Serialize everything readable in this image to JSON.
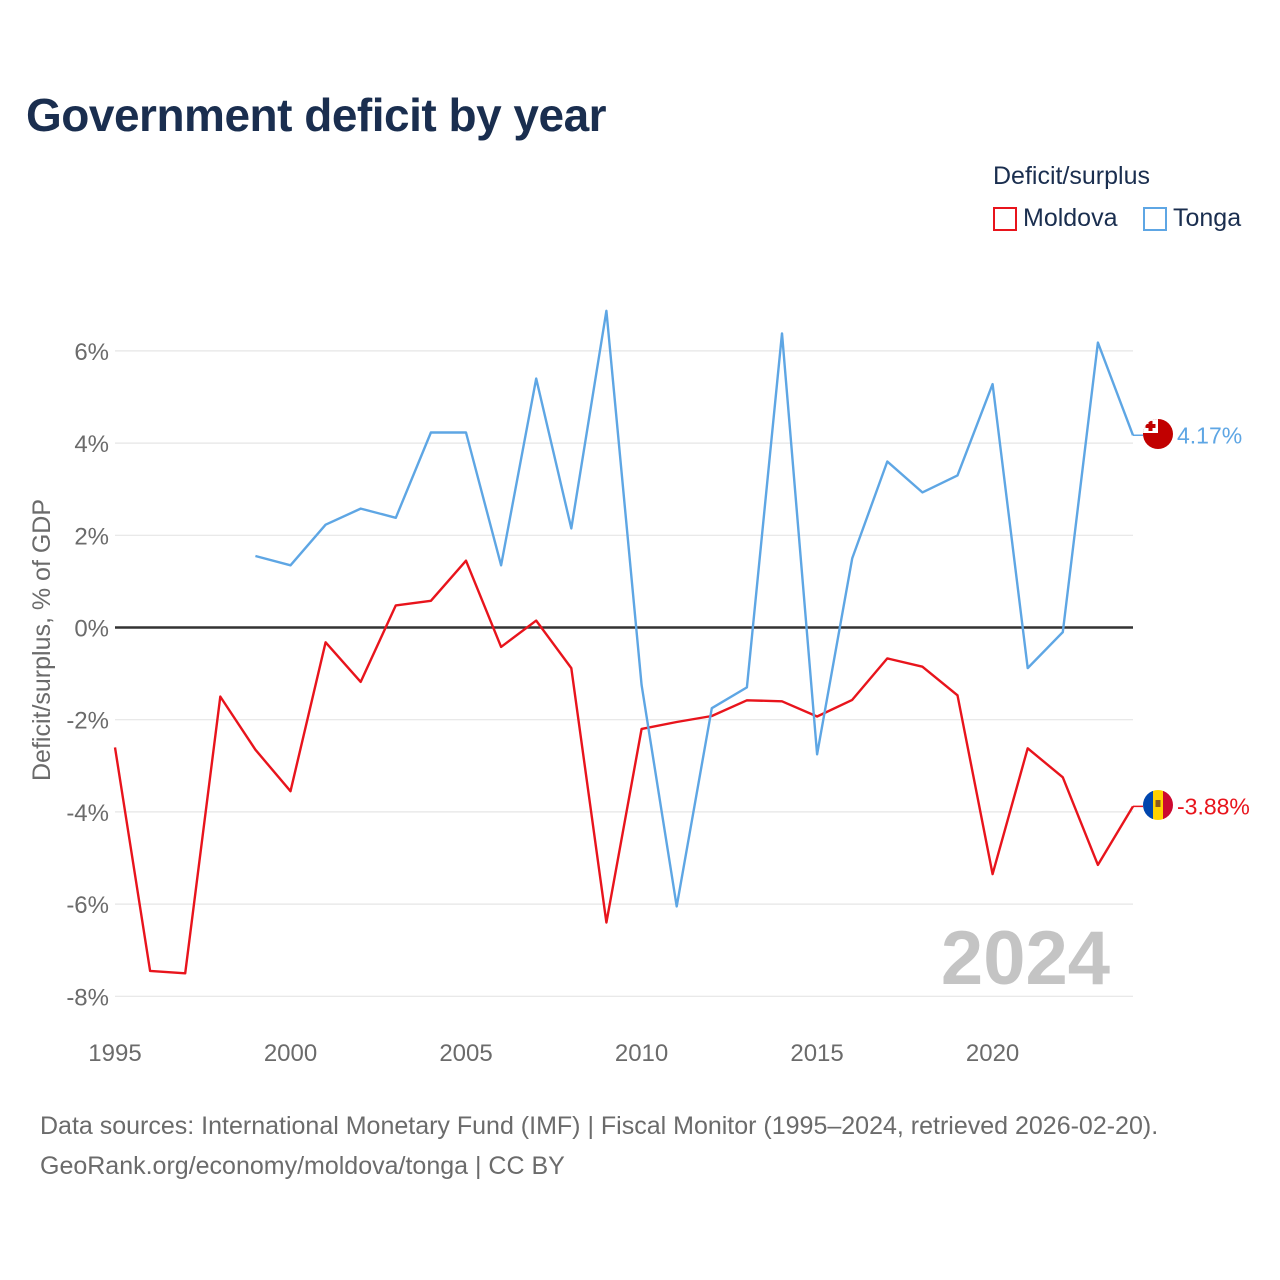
{
  "title": "Government deficit by year",
  "legend": {
    "title": "Deficit/surplus",
    "items": [
      {
        "label": "Moldova",
        "color": "#e8141c"
      },
      {
        "label": "Tonga",
        "color": "#5ea6e4"
      }
    ]
  },
  "chart_data": {
    "type": "line",
    "title": "Government deficit by year",
    "xlabel": "",
    "ylabel": "Deficit/surplus, % of GDP",
    "xlim": [
      1995,
      2024
    ],
    "ylim": [
      -8,
      7
    ],
    "x_ticks": [
      1995,
      2000,
      2005,
      2010,
      2015,
      2020
    ],
    "y_ticks": [
      {
        "value": 6,
        "label": "6%"
      },
      {
        "value": 4,
        "label": "4%"
      },
      {
        "value": 2,
        "label": "2%"
      },
      {
        "value": 0,
        "label": "0%"
      },
      {
        "value": -2,
        "label": "-2%"
      },
      {
        "value": -4,
        "label": "-4%"
      },
      {
        "value": -6,
        "label": "-6%"
      },
      {
        "value": -8,
        "label": "-8%"
      }
    ],
    "grid": true,
    "year_watermark": "2024",
    "series": [
      {
        "name": "Moldova",
        "color": "#e8141c",
        "end_label": "-3.88%",
        "points": [
          [
            1995,
            -2.6
          ],
          [
            1996,
            -7.45
          ],
          [
            1997,
            -7.5
          ],
          [
            1998,
            -1.5
          ],
          [
            1999,
            -2.65
          ],
          [
            2000,
            -3.55
          ],
          [
            2001,
            -0.32
          ],
          [
            2002,
            -1.18
          ],
          [
            2003,
            0.48
          ],
          [
            2004,
            0.58
          ],
          [
            2005,
            1.45
          ],
          [
            2006,
            -0.42
          ],
          [
            2007,
            0.15
          ],
          [
            2008,
            -0.88
          ],
          [
            2009,
            -6.4
          ],
          [
            2010,
            -2.2
          ],
          [
            2011,
            -2.05
          ],
          [
            2012,
            -1.92
          ],
          [
            2013,
            -1.58
          ],
          [
            2014,
            -1.6
          ],
          [
            2015,
            -1.93
          ],
          [
            2016,
            -1.57
          ],
          [
            2017,
            -0.67
          ],
          [
            2018,
            -0.85
          ],
          [
            2019,
            -1.47
          ],
          [
            2020,
            -5.35
          ],
          [
            2021,
            -2.62
          ],
          [
            2022,
            -3.25
          ],
          [
            2023,
            -5.15
          ],
          [
            2024,
            -3.88
          ]
        ]
      },
      {
        "name": "Tonga",
        "color": "#5ea6e4",
        "end_label": "4.17%",
        "points": [
          [
            1999,
            1.55
          ],
          [
            2000,
            1.35
          ],
          [
            2001,
            2.23
          ],
          [
            2002,
            2.58
          ],
          [
            2003,
            2.38
          ],
          [
            2004,
            4.23
          ],
          [
            2005,
            4.23
          ],
          [
            2006,
            1.35
          ],
          [
            2007,
            5.4
          ],
          [
            2008,
            2.15
          ],
          [
            2009,
            6.87
          ],
          [
            2010,
            -1.25
          ],
          [
            2011,
            -6.05
          ],
          [
            2012,
            -1.75
          ],
          [
            2013,
            -1.3
          ],
          [
            2014,
            6.38
          ],
          [
            2015,
            -2.75
          ],
          [
            2016,
            1.5
          ],
          [
            2017,
            3.6
          ],
          [
            2018,
            2.93
          ],
          [
            2019,
            3.3
          ],
          [
            2020,
            5.28
          ],
          [
            2021,
            -0.88
          ],
          [
            2022,
            -0.1
          ],
          [
            2023,
            6.18
          ],
          [
            2024,
            4.17
          ]
        ]
      }
    ]
  },
  "source": {
    "line1": "Data sources: International Monetary Fund (IMF) | Fiscal Monitor (1995–2024, retrieved 2026-02-20).",
    "line2": "GeoRank.org/economy/moldova/tonga | CC BY"
  }
}
